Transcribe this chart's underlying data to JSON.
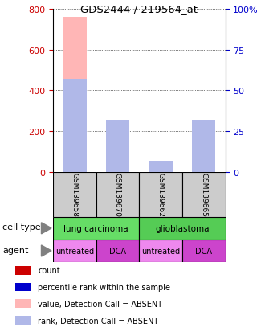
{
  "title": "GDS2444 / 219564_at",
  "samples": [
    "GSM139658",
    "GSM139670",
    "GSM139662",
    "GSM139665"
  ],
  "value_bars": [
    760,
    255,
    30,
    250
  ],
  "rank_bars": [
    57,
    32,
    7,
    32
  ],
  "value_color_absent": "#FFB6B6",
  "rank_color_absent": "#B0B8E8",
  "ylim_left": [
    0,
    800
  ],
  "ylim_right": [
    0,
    100
  ],
  "yticks_left": [
    0,
    200,
    400,
    600,
    800
  ],
  "yticks_right": [
    0,
    25,
    50,
    75,
    100
  ],
  "ylabel_left_color": "#CC0000",
  "ylabel_right_color": "#0000CC",
  "cell_types": [
    {
      "label": "lung carcinoma",
      "span": [
        0,
        2
      ],
      "color": "#66DD66"
    },
    {
      "label": "glioblastoma",
      "span": [
        2,
        4
      ],
      "color": "#55CC55"
    }
  ],
  "agents": [
    {
      "label": "untreated",
      "span": [
        0,
        1
      ],
      "color": "#EE88EE"
    },
    {
      "label": "DCA",
      "span": [
        1,
        2
      ],
      "color": "#CC44CC"
    },
    {
      "label": "untreated",
      "span": [
        2,
        3
      ],
      "color": "#EE88EE"
    },
    {
      "label": "DCA",
      "span": [
        3,
        4
      ],
      "color": "#CC44CC"
    }
  ],
  "sample_box_color": "#CCCCCC",
  "legend_items": [
    {
      "color": "#CC0000",
      "label": "count"
    },
    {
      "color": "#0000CC",
      "label": "percentile rank within the sample"
    },
    {
      "color": "#FFB6B6",
      "label": "value, Detection Call = ABSENT"
    },
    {
      "color": "#B0B8E8",
      "label": "rank, Detection Call = ABSENT"
    }
  ],
  "bar_width": 0.35
}
